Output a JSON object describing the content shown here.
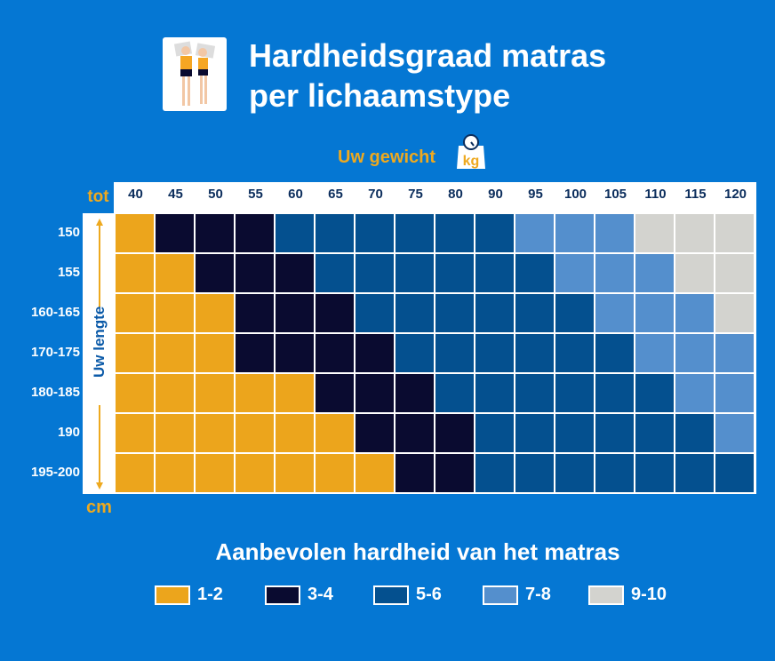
{
  "title_line1": "Hardheidsgraad matras",
  "title_line2": "per lichaamstype",
  "weight_label": "Uw gewicht",
  "weight_icon_text": "kg",
  "chart_data": {
    "type": "heatmap",
    "x_label": "Uw gewicht",
    "x_prefix": "tot",
    "y_label": "Uw lengte",
    "y_unit": "cm",
    "columns": [
      "40",
      "45",
      "50",
      "55",
      "60",
      "65",
      "70",
      "75",
      "80",
      "90",
      "95",
      "100",
      "105",
      "110",
      "115",
      "120"
    ],
    "rows": [
      "150",
      "155",
      "160-165",
      "170-175",
      "180-185",
      "190",
      "195-200"
    ],
    "values": [
      [
        "1-2",
        "3-4",
        "3-4",
        "3-4",
        "5-6",
        "5-6",
        "5-6",
        "5-6",
        "5-6",
        "5-6",
        "7-8",
        "7-8",
        "7-8",
        "9-10",
        "9-10",
        "9-10"
      ],
      [
        "1-2",
        "1-2",
        "3-4",
        "3-4",
        "3-4",
        "5-6",
        "5-6",
        "5-6",
        "5-6",
        "5-6",
        "5-6",
        "7-8",
        "7-8",
        "7-8",
        "9-10",
        "9-10"
      ],
      [
        "1-2",
        "1-2",
        "1-2",
        "3-4",
        "3-4",
        "3-4",
        "5-6",
        "5-6",
        "5-6",
        "5-6",
        "5-6",
        "5-6",
        "7-8",
        "7-8",
        "7-8",
        "9-10"
      ],
      [
        "1-2",
        "1-2",
        "1-2",
        "3-4",
        "3-4",
        "3-4",
        "3-4",
        "5-6",
        "5-6",
        "5-6",
        "5-6",
        "5-6",
        "5-6",
        "7-8",
        "7-8",
        "7-8"
      ],
      [
        "1-2",
        "1-2",
        "1-2",
        "1-2",
        "1-2",
        "3-4",
        "3-4",
        "3-4",
        "5-6",
        "5-6",
        "5-6",
        "5-6",
        "5-6",
        "5-6",
        "7-8",
        "7-8"
      ],
      [
        "1-2",
        "1-2",
        "1-2",
        "1-2",
        "1-2",
        "1-2",
        "3-4",
        "3-4",
        "3-4",
        "5-6",
        "5-6",
        "5-6",
        "5-6",
        "5-6",
        "5-6",
        "7-8"
      ],
      [
        "1-2",
        "1-2",
        "1-2",
        "1-2",
        "1-2",
        "1-2",
        "1-2",
        "3-4",
        "3-4",
        "5-6",
        "5-6",
        "5-6",
        "5-6",
        "5-6",
        "5-6",
        "5-6"
      ]
    ],
    "legend_title": "Aanbevolen hardheid van het matras",
    "legend": [
      {
        "label": "1-2",
        "color": "#eca51c"
      },
      {
        "label": "3-4",
        "color": "#0a0b30"
      },
      {
        "label": "5-6",
        "color": "#04508f"
      },
      {
        "label": "7-8",
        "color": "#548fcd"
      },
      {
        "label": "9-10",
        "color": "#d3d3cf"
      }
    ]
  }
}
